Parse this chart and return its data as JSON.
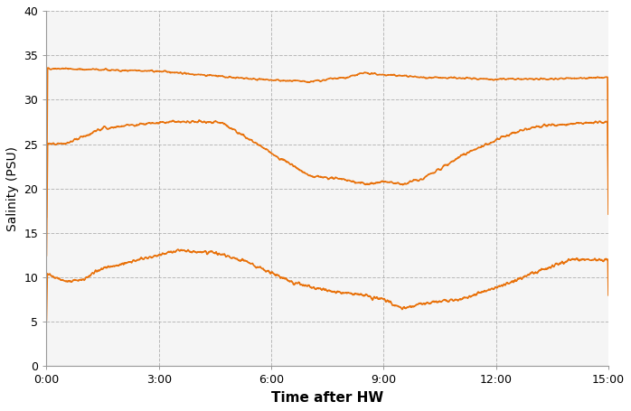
{
  "xlabel": "Time after HW",
  "ylabel": "Salinity (PSU)",
  "xlim": [
    0,
    900
  ],
  "ylim": [
    0,
    40
  ],
  "yticks": [
    0,
    5,
    10,
    15,
    20,
    25,
    30,
    35,
    40
  ],
  "xticks": [
    0,
    180,
    360,
    540,
    720,
    900
  ],
  "xticklabels": [
    "0:00",
    "3:00",
    "6:00",
    "9:00",
    "12:00",
    "15:00"
  ],
  "line_color": "#E8710A",
  "linewidth": 1.2,
  "plot_bg_color": "#f5f5f5",
  "fig_bg_color": "#ffffff",
  "grid_color": "#aaaaaa",
  "xlabel_fontsize": 11,
  "ylabel_fontsize": 10,
  "tick_fontsize": 9,
  "xlabel_bold": true
}
